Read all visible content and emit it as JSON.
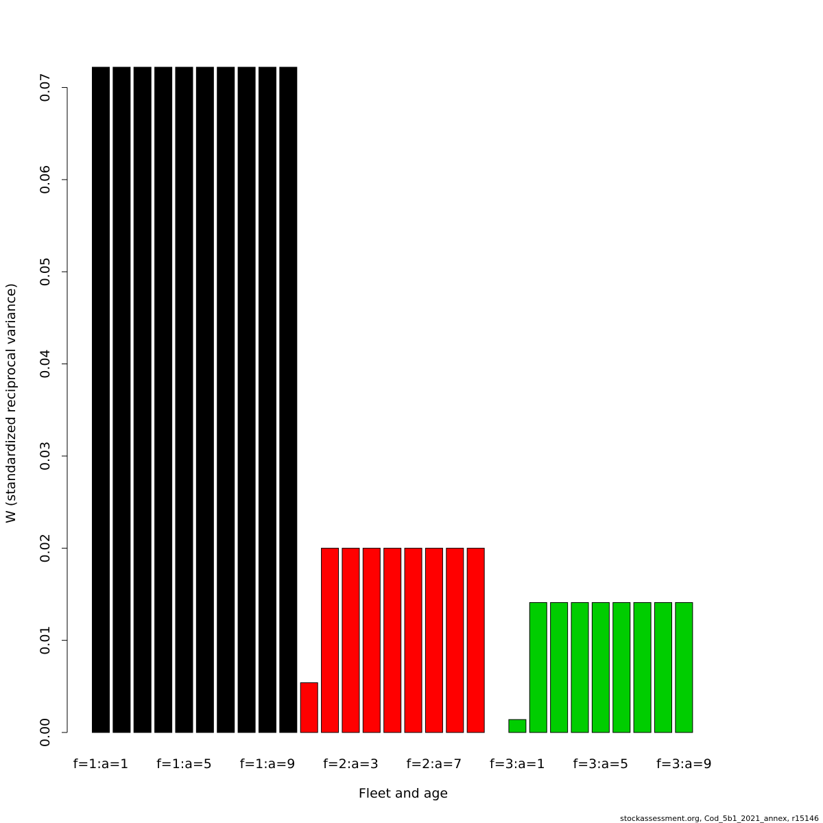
{
  "chart_data": {
    "type": "bar",
    "xlabel": "Fleet and age",
    "ylabel": "W (standardized reciprocal variance)",
    "footnote": "stockassessment.org, Cod_5b1_2021_annex, r15146",
    "categories": [
      "f=1:a=1",
      null,
      null,
      null,
      "f=1:a=5",
      null,
      null,
      null,
      "f=1:a=9",
      null,
      null,
      null,
      "f=2:a=3",
      null,
      null,
      null,
      "f=2:a=7",
      null,
      null,
      null,
      "f=3:a=1",
      null,
      null,
      null,
      "f=3:a=5",
      null,
      null,
      null,
      "f=3:a=9"
    ],
    "values": [
      0.0722,
      0.0722,
      0.0722,
      0.0722,
      0.0722,
      0.0722,
      0.0722,
      0.0722,
      0.0722,
      0.0722,
      0.0054,
      0.02,
      0.02,
      0.02,
      0.02,
      0.02,
      0.02,
      0.02,
      0.02,
      0,
      0.0014,
      0.0141,
      0.0141,
      0.0141,
      0.0141,
      0.0141,
      0.0141,
      0.0141,
      0.0141
    ],
    "colors": [
      "#000000",
      "#000000",
      "#000000",
      "#000000",
      "#000000",
      "#000000",
      "#000000",
      "#000000",
      "#000000",
      "#000000",
      "#ff0000",
      "#ff0000",
      "#ff0000",
      "#ff0000",
      "#ff0000",
      "#ff0000",
      "#ff0000",
      "#ff0000",
      "#ff0000",
      "#ff0000",
      "#00cd00",
      "#00cd00",
      "#00cd00",
      "#00cd00",
      "#00cd00",
      "#00cd00",
      "#00cd00",
      "#00cd00",
      "#00cd00"
    ],
    "ylim": [
      0,
      0.0722
    ],
    "yticks": [
      {
        "value": 0,
        "label": "0.00"
      },
      0.01,
      0.02,
      0.03,
      0.04,
      0.05,
      0.06,
      0.07
    ]
  }
}
